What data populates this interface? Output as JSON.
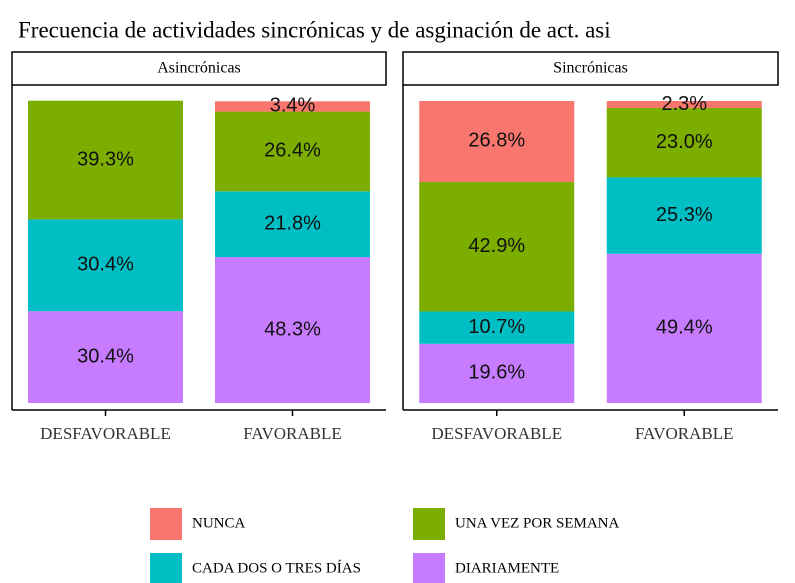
{
  "title": "Frecuencia de actividades sincrónicas y de asginación de act. asi",
  "chart_data": [
    {
      "type": "bar",
      "stacked": true,
      "title": "Asincrónicas",
      "categories": [
        "DESFAVORABLE",
        "FAVORABLE"
      ],
      "ylim": [
        0,
        100
      ],
      "series": [
        {
          "name": "NUNCA",
          "color": "#f8766d",
          "values": [
            null,
            3.4
          ],
          "value_labels": [
            null,
            "3.4%"
          ]
        },
        {
          "name": "UNA VEZ POR SEMANA",
          "color": "#7cae00",
          "values": [
            39.3,
            26.4
          ],
          "value_labels": [
            "39.3%",
            "26.4%"
          ]
        },
        {
          "name": "CADA DOS O TRES DÍAS",
          "color": "#00bfc4",
          "values": [
            30.4,
            21.8
          ],
          "value_labels": [
            "30.4%",
            "21.8%"
          ]
        },
        {
          "name": "DIARIAMENTE",
          "color": "#c77cff",
          "values": [
            30.4,
            48.3
          ],
          "value_labels": [
            "30.4%",
            "48.3%"
          ]
        }
      ]
    },
    {
      "type": "bar",
      "stacked": true,
      "title": "Sincrónicas",
      "categories": [
        "DESFAVORABLE",
        "FAVORABLE"
      ],
      "ylim": [
        0,
        100
      ],
      "series": [
        {
          "name": "NUNCA",
          "color": "#f8766d",
          "values": [
            26.8,
            2.3
          ],
          "value_labels": [
            "26.8%",
            "2.3%"
          ]
        },
        {
          "name": "UNA VEZ POR SEMANA",
          "color": "#7cae00",
          "values": [
            42.9,
            23.0
          ],
          "value_labels": [
            "42.9%",
            "23.0%"
          ]
        },
        {
          "name": "CADA DOS O TRES DÍAS",
          "color": "#00bfc4",
          "values": [
            10.7,
            25.3
          ],
          "value_labels": [
            "10.7%",
            "25.3%"
          ]
        },
        {
          "name": "DIARIAMENTE",
          "color": "#c77cff",
          "values": [
            19.6,
            49.4
          ],
          "value_labels": [
            "19.6%",
            "49.4%"
          ]
        }
      ]
    }
  ]
}
